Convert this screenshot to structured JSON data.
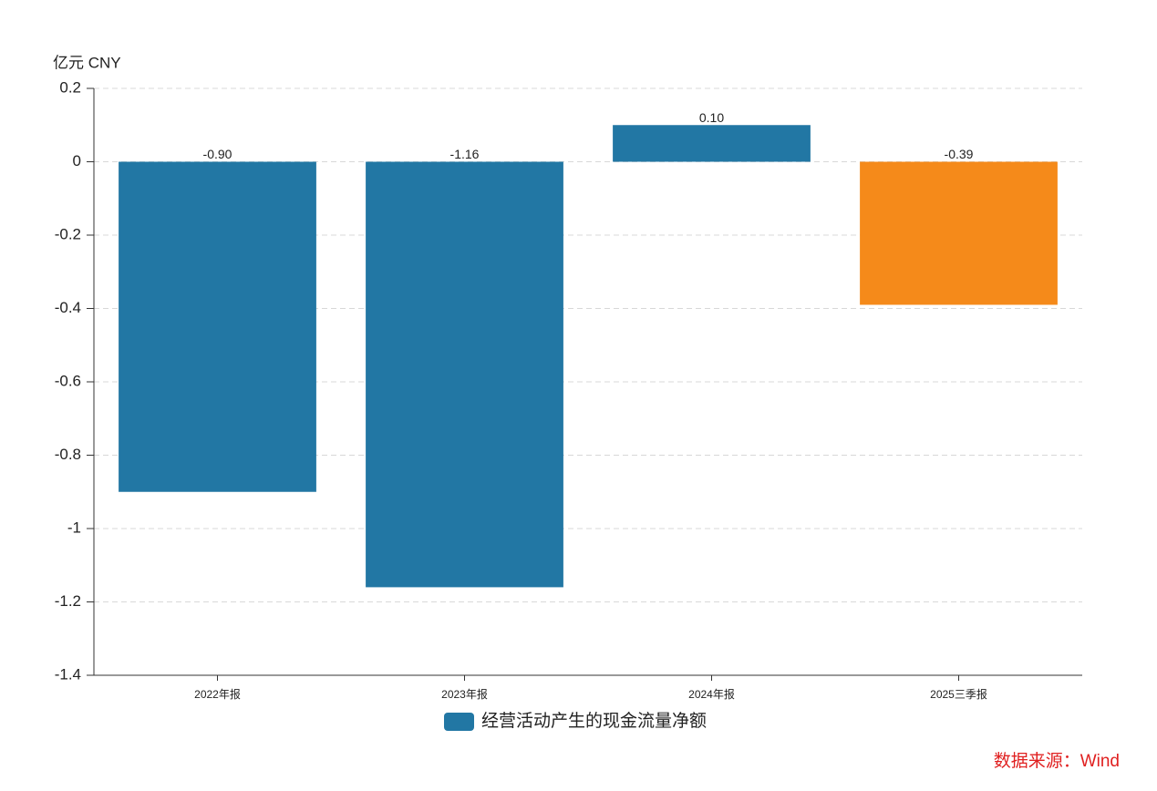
{
  "chart_data": {
    "type": "bar",
    "y_axis_label": "亿元  CNY",
    "categories": [
      "2022年报",
      "2023年报",
      "2024年报",
      "2025三季报"
    ],
    "series": [
      {
        "name": "经营活动产生的现金流量净额",
        "color": "#2277a4",
        "bar_colors": [
          "#2277a4",
          "#2277a4",
          "#2277a4",
          "#f58a1a"
        ],
        "values": [
          -0.9,
          -1.16,
          0.1,
          -0.39
        ],
        "value_labels": [
          "-0.90",
          "-1.16",
          "0.10",
          "-0.39"
        ]
      }
    ],
    "ylim": [
      -1.4,
      0.2
    ],
    "yticks": [
      0.2,
      0,
      -0.2,
      -0.4,
      -0.6,
      -0.8,
      -1,
      -1.2,
      -1.4
    ],
    "grid": true,
    "source": "数据来源：Wind"
  }
}
